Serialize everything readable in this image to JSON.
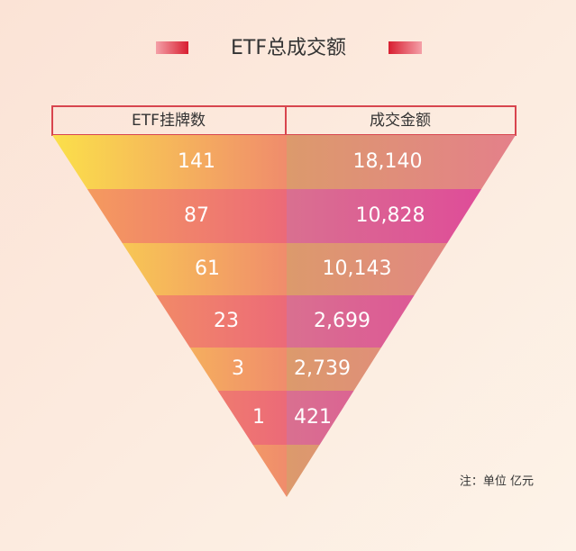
{
  "title": "ETF总成交额",
  "table": {
    "headers": [
      "ETF挂牌数",
      "成交金额"
    ],
    "rows": [
      [
        "141",
        "18,140"
      ],
      [
        "87",
        "10,828"
      ],
      [
        "61",
        "10,143"
      ],
      [
        "23",
        "2,699"
      ],
      [
        "3",
        "2,739"
      ],
      [
        "1",
        "421"
      ]
    ]
  },
  "note": "注：单位 亿元"
}
